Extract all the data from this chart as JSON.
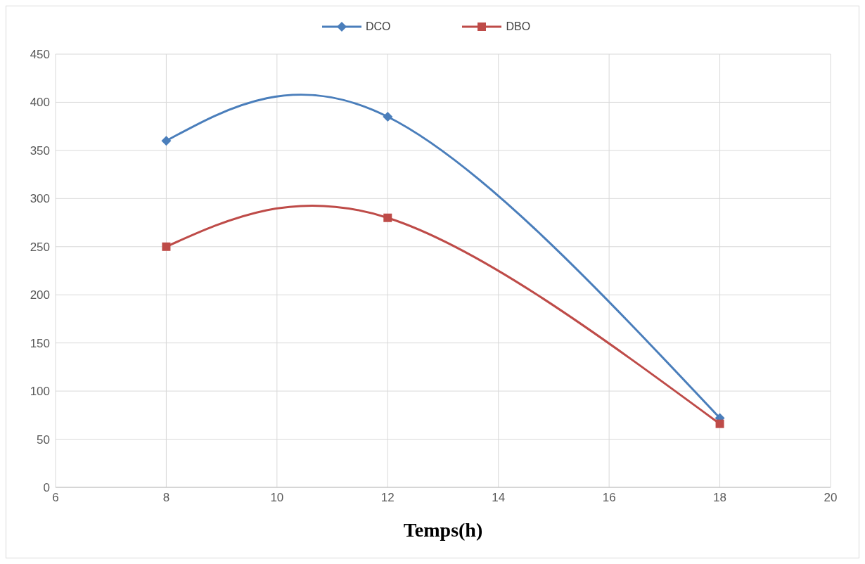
{
  "chart_data": {
    "type": "line",
    "xlabel": "Temps(h)",
    "x": [
      8,
      12,
      18
    ],
    "series": [
      {
        "name": "DCO",
        "color": "#4a7ebb",
        "values": [
          360,
          385,
          72
        ],
        "marker": "diamond"
      },
      {
        "name": "DBO",
        "color": "#be4b48",
        "values": [
          250,
          280,
          66
        ],
        "marker": "square"
      }
    ],
    "xlim": [
      6,
      20
    ],
    "xticks": [
      6,
      8,
      10,
      12,
      14,
      16,
      18,
      20
    ],
    "ylim": [
      0,
      450
    ],
    "yticks": [
      0,
      50,
      100,
      150,
      200,
      250,
      300,
      350,
      400,
      450
    ],
    "grid": true,
    "legend": "top",
    "line_style": "solid"
  }
}
